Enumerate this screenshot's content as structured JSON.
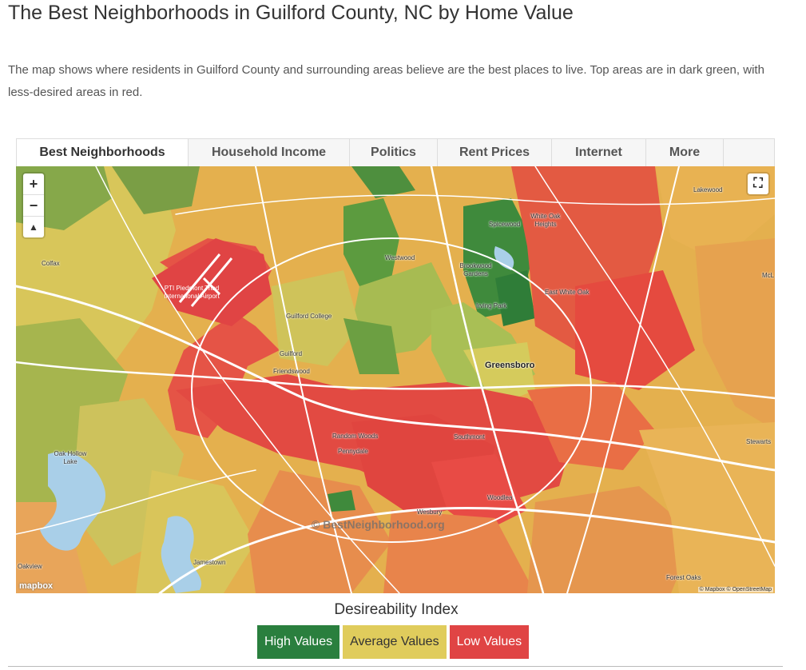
{
  "page": {
    "title": "The Best Neighborhoods in Guilford County, NC by Home Value",
    "description": "The map shows where residents in Guilford County and surrounding areas believe are the best places to live. Top areas are in dark green, with less-desired areas in red."
  },
  "tabs": [
    {
      "label": "Best Neighborhoods",
      "active": true
    },
    {
      "label": "Household Income",
      "active": false
    },
    {
      "label": "Politics",
      "active": false
    },
    {
      "label": "Rent Prices",
      "active": false
    },
    {
      "label": "Internet",
      "active": false
    },
    {
      "label": "More",
      "active": false
    }
  ],
  "map": {
    "zoom_in": "+",
    "zoom_out": "−",
    "compass": "▲",
    "fullscreen_icon": "fullscreen-icon",
    "watermark": "© BestNeighborhood.org",
    "logo": "mapbox",
    "attribution": "© Mapbox © OpenStreetMap",
    "places": [
      {
        "name": "Lakewood",
        "type": "place"
      },
      {
        "name": "Colfax",
        "type": "place"
      },
      {
        "name": "Spicewood",
        "type": "place"
      },
      {
        "name": "White Oak Heights",
        "type": "place"
      },
      {
        "name": "Westwood",
        "type": "place"
      },
      {
        "name": "Brookwood Gardens",
        "type": "place"
      },
      {
        "name": "Irving Park",
        "type": "place"
      },
      {
        "name": "East White Oak",
        "type": "place"
      },
      {
        "name": "Guilford College",
        "type": "place"
      },
      {
        "name": "Guilford",
        "type": "place"
      },
      {
        "name": "Friendswood",
        "type": "place"
      },
      {
        "name": "Greensboro",
        "type": "city"
      },
      {
        "name": "Random Woods",
        "type": "place"
      },
      {
        "name": "Southmont",
        "type": "place"
      },
      {
        "name": "Pennydale",
        "type": "place"
      },
      {
        "name": "Oak Hollow Lake",
        "type": "place"
      },
      {
        "name": "Stewarts",
        "type": "place"
      },
      {
        "name": "Woodlea",
        "type": "place"
      },
      {
        "name": "Wesbury",
        "type": "place"
      },
      {
        "name": "Jamestown",
        "type": "place"
      },
      {
        "name": "Oakview",
        "type": "place"
      },
      {
        "name": "Forest Oaks",
        "type": "place"
      },
      {
        "name": "McL",
        "type": "place"
      },
      {
        "name": "PTI Piedmont Triad International Airport",
        "type": "place"
      }
    ],
    "colors": {
      "high": "#2a7f3e",
      "average": "#e0cc5c",
      "low": "#e04444",
      "water": "#a9cfe8",
      "roads": "#ffffff"
    }
  },
  "legend": {
    "title": "Desireability Index",
    "high": "High Values",
    "average": "Average Values",
    "low": "Low Values"
  }
}
